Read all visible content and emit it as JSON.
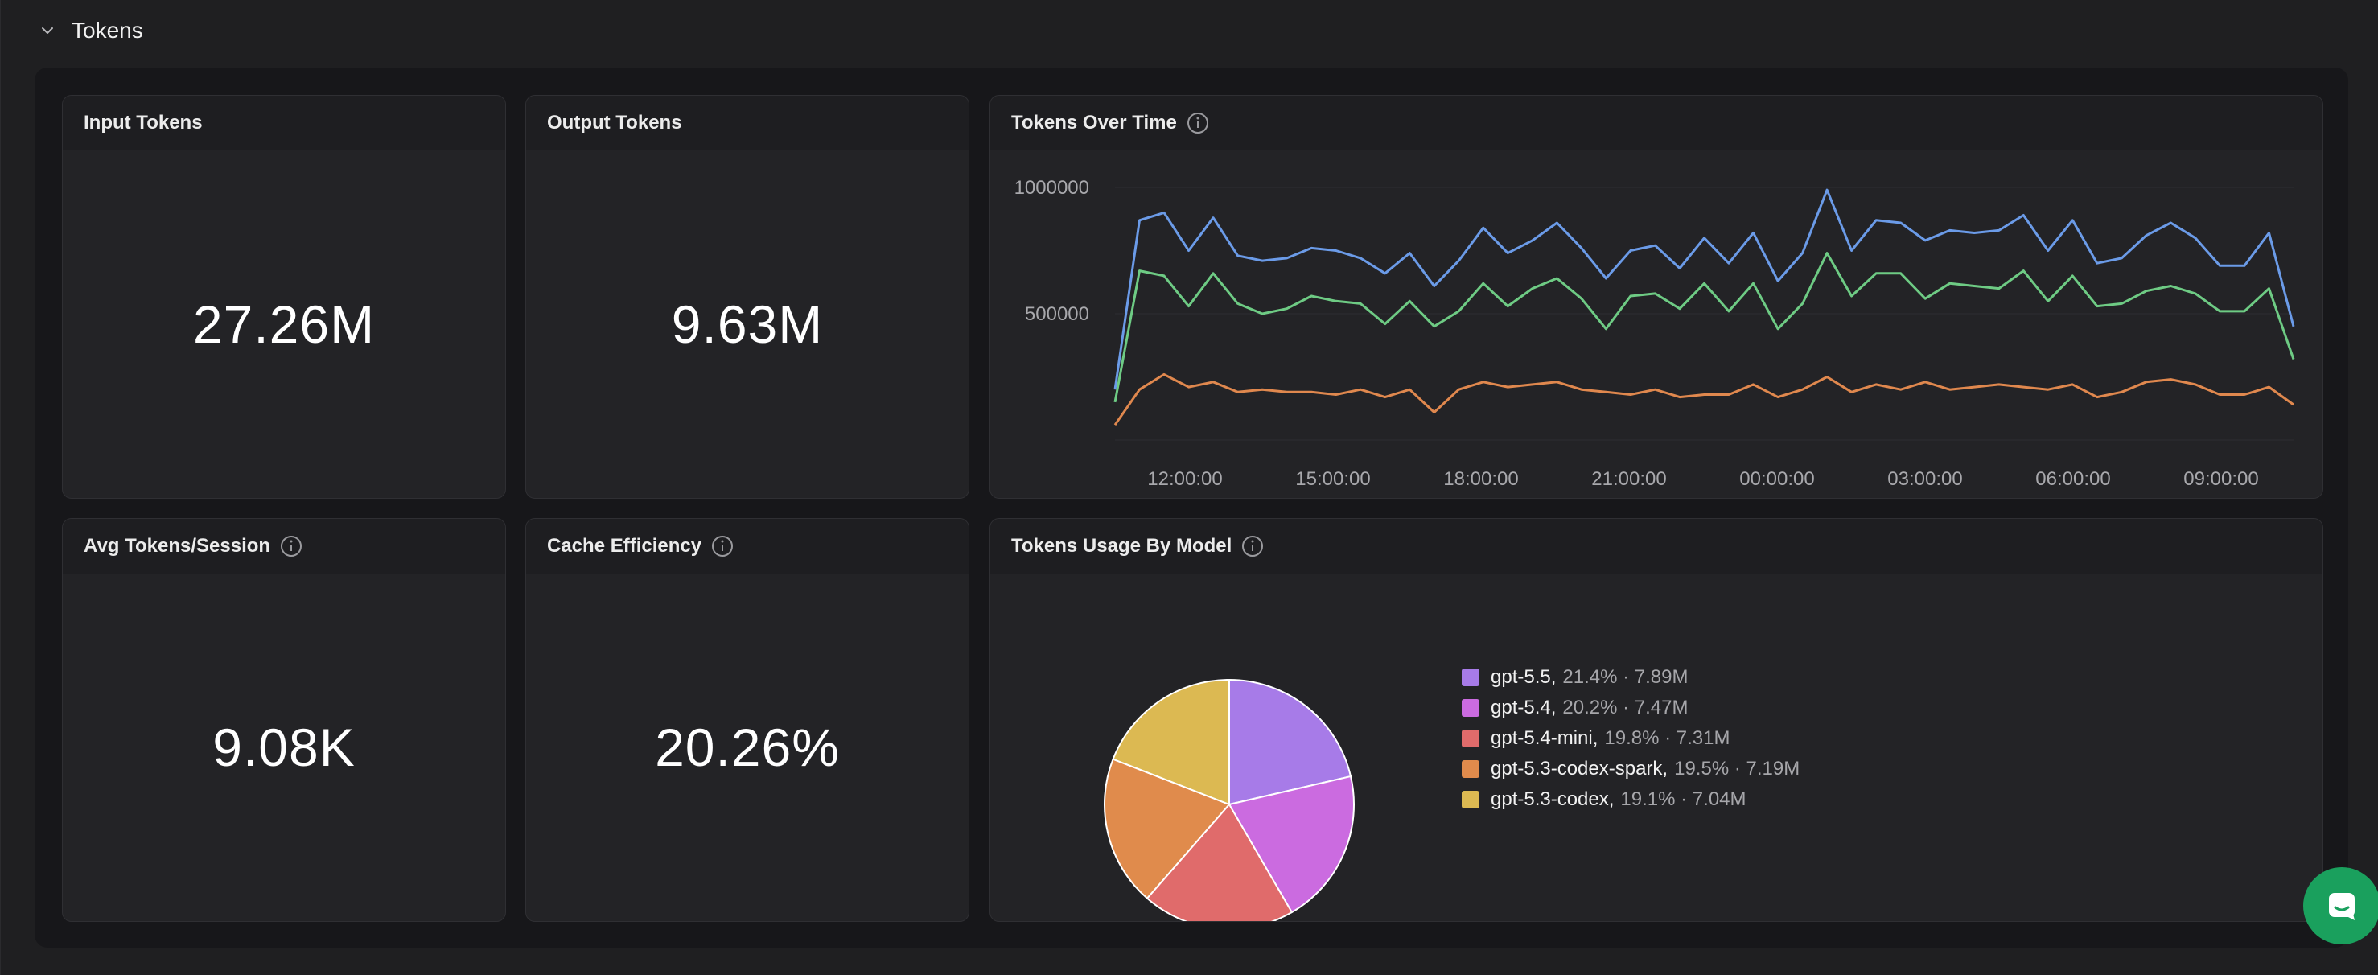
{
  "section": {
    "title": "Tokens"
  },
  "cards": {
    "input_tokens": {
      "label": "Input Tokens",
      "value": "27.26M"
    },
    "output_tokens": {
      "label": "Output Tokens",
      "value": "9.63M"
    },
    "avg_tokens_session": {
      "label": "Avg Tokens/Session",
      "value": "9.08K"
    },
    "cache_efficiency": {
      "label": "Cache Efficiency",
      "value": "20.26%"
    },
    "tokens_over_time": {
      "label": "Tokens Over Time"
    },
    "tokens_by_model": {
      "label": "Tokens Usage By Model"
    }
  },
  "chart_data": [
    {
      "type": "line",
      "title": "Tokens Over Time",
      "y_tick_labels": [
        "1000000",
        "500000"
      ],
      "ylim": [
        0,
        1000000
      ],
      "x_tick_labels": [
        "12:00:00",
        "15:00:00",
        "18:00:00",
        "21:00:00",
        "00:00:00",
        "03:00:00",
        "06:00:00",
        "09:00:00"
      ],
      "grid": true,
      "series": [
        {
          "color": "#6b9be8",
          "values": [
            200000,
            870000,
            900000,
            750000,
            880000,
            730000,
            710000,
            720000,
            760000,
            750000,
            720000,
            660000,
            740000,
            610000,
            710000,
            840000,
            740000,
            790000,
            860000,
            760000,
            640000,
            750000,
            770000,
            680000,
            800000,
            700000,
            820000,
            630000,
            740000,
            990000,
            750000,
            870000,
            860000,
            790000,
            830000,
            820000,
            830000,
            890000,
            750000,
            870000,
            700000,
            720000,
            810000,
            860000,
            800000,
            690000,
            690000,
            820000,
            450000
          ]
        },
        {
          "color": "#6ecb84",
          "values": [
            150000,
            670000,
            650000,
            530000,
            660000,
            540000,
            500000,
            520000,
            570000,
            550000,
            540000,
            460000,
            550000,
            450000,
            510000,
            620000,
            530000,
            600000,
            640000,
            560000,
            440000,
            570000,
            580000,
            520000,
            620000,
            510000,
            620000,
            440000,
            540000,
            740000,
            570000,
            660000,
            660000,
            560000,
            620000,
            610000,
            600000,
            670000,
            550000,
            650000,
            530000,
            540000,
            590000,
            610000,
            580000,
            510000,
            510000,
            600000,
            320000
          ]
        },
        {
          "color": "#e0884e",
          "values": [
            60000,
            200000,
            260000,
            210000,
            230000,
            190000,
            200000,
            190000,
            190000,
            180000,
            200000,
            170000,
            200000,
            110000,
            200000,
            230000,
            210000,
            220000,
            230000,
            200000,
            190000,
            180000,
            200000,
            170000,
            180000,
            180000,
            220000,
            170000,
            200000,
            250000,
            190000,
            220000,
            200000,
            230000,
            200000,
            210000,
            220000,
            210000,
            200000,
            220000,
            170000,
            190000,
            230000,
            240000,
            220000,
            180000,
            180000,
            210000,
            140000
          ]
        }
      ]
    },
    {
      "type": "pie",
      "title": "Tokens Usage By Model",
      "categories": [
        "gpt-5.5",
        "gpt-5.4",
        "gpt-5.4-mini",
        "gpt-5.3-codex-spark",
        "gpt-5.3-codex"
      ],
      "values": [
        7.89,
        7.47,
        7.31,
        7.19,
        7.04
      ],
      "percents": [
        21.4,
        20.2,
        19.8,
        19.5,
        19.1
      ],
      "colors": [
        "#a77be8",
        "#cb6be0",
        "#e06b6b",
        "#e08b4c",
        "#dcb952"
      ]
    }
  ],
  "legend": [
    {
      "name": "gpt-5.5,",
      "detail": "21.4% · 7.89M",
      "color": "#a77be8"
    },
    {
      "name": "gpt-5.4,",
      "detail": "20.2% · 7.47M",
      "color": "#cb6be0"
    },
    {
      "name": "gpt-5.4-mini,",
      "detail": "19.8% · 7.31M",
      "color": "#e06b6b"
    },
    {
      "name": "gpt-5.3-codex-spark,",
      "detail": "19.5% · 7.19M",
      "color": "#e08b4c"
    },
    {
      "name": "gpt-5.3-codex,",
      "detail": "19.1% · 7.04M",
      "color": "#dcb952"
    }
  ],
  "icons": {
    "collapse": "chevron-down-icon",
    "info": "info-icon",
    "chat": "chat-icon"
  }
}
